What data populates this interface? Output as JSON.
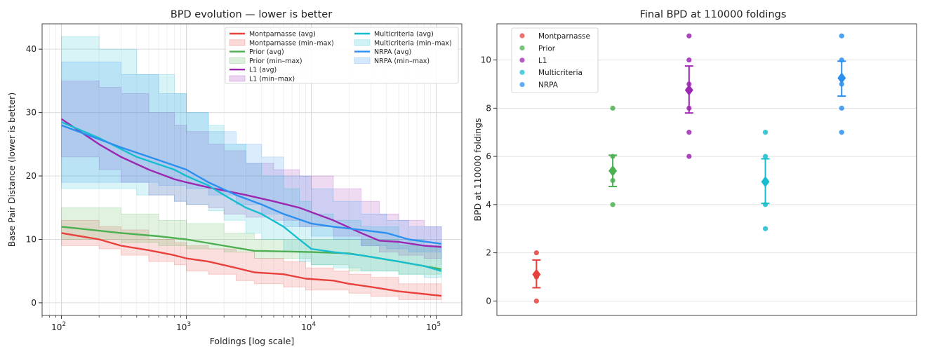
{
  "chart_data": [
    {
      "type": "line",
      "title": "BPD evolution — lower is better",
      "xlabel": "Foldings  [log scale]",
      "ylabel": "Base Pair Distance (lower is better)",
      "xscale": "log",
      "xlim": [
        70,
        160000
      ],
      "ylim": [
        -2,
        44
      ],
      "xticks": [
        {
          "value": 100,
          "base": "10",
          "exp": "2"
        },
        {
          "value": 1000,
          "base": "10",
          "exp": "3"
        },
        {
          "value": 10000,
          "base": "10",
          "exp": "4"
        },
        {
          "value": 100000,
          "base": "10",
          "exp": "5"
        }
      ],
      "yticks": [
        0,
        10,
        20,
        30,
        40
      ],
      "grid": true,
      "legend_position": "top-right",
      "series": [
        {
          "name": "Montparnasse",
          "avg_label": "Montparnasse (avg)",
          "band_label": "Montparnasse (min–max)",
          "color": "#e8413c",
          "x": [
            100,
            200,
            300,
            500,
            800,
            1000,
            1500,
            2500,
            3500,
            6000,
            9000,
            15000,
            20000,
            30000,
            50000,
            110000
          ],
          "avg": [
            11,
            10,
            9,
            8.3,
            7.5,
            7,
            6.5,
            5.5,
            4.8,
            4.5,
            3.8,
            3.5,
            3,
            2.5,
            1.8,
            1.1
          ],
          "min": [
            9,
            8.5,
            7.5,
            6.5,
            6,
            5,
            4.5,
            3.5,
            3,
            2.5,
            2,
            2,
            1.5,
            1,
            0.5,
            0
          ],
          "max": [
            13,
            12,
            11.5,
            10,
            9.5,
            9,
            8.5,
            8,
            7,
            6.5,
            5.5,
            5,
            4.5,
            4,
            3,
            2
          ]
        },
        {
          "name": "Prior",
          "avg_label": "Prior (avg)",
          "band_label": "Prior (min–max)",
          "color": "#4caf50",
          "x": [
            100,
            300,
            600,
            1000,
            2000,
            3500,
            10000,
            20000,
            50000,
            110000
          ],
          "avg": [
            12,
            11,
            10.5,
            10,
            9,
            8.2,
            8,
            7.8,
            6.5,
            5.3
          ],
          "min": [
            10,
            9.5,
            9,
            8.5,
            8,
            7,
            6,
            5,
            4.5,
            4
          ],
          "max": [
            15,
            14,
            13,
            12.5,
            11,
            10,
            10,
            10,
            9,
            8
          ]
        },
        {
          "name": "L1",
          "avg_label": "L1 (avg)",
          "band_label": "L1 (min–max)",
          "color": "#9c27b0",
          "x": [
            100,
            200,
            300,
            500,
            800,
            1000,
            1500,
            2000,
            3000,
            5000,
            8000,
            15000,
            25000,
            35000,
            50000,
            80000,
            110000
          ],
          "avg": [
            29,
            25,
            23,
            21,
            19.5,
            19,
            18.2,
            17.7,
            17,
            16,
            15,
            13,
            11,
            9.8,
            9.6,
            9,
            8.8
          ],
          "min": [
            23,
            21,
            19,
            17,
            16,
            15.5,
            15,
            14,
            13.5,
            13,
            12,
            10.5,
            9,
            8,
            7.5,
            7,
            6
          ],
          "max": [
            35,
            34,
            33,
            30,
            28,
            27,
            25,
            24,
            22,
            21,
            20,
            18,
            16,
            14,
            13,
            12,
            11
          ]
        },
        {
          "name": "Multicriteria",
          "avg_label": "Multicriteria (avg)",
          "band_label": "Multicriteria (min–max)",
          "color": "#17becf",
          "x": [
            100,
            200,
            400,
            800,
            1000,
            1500,
            2000,
            3000,
            4000,
            6000,
            8000,
            10000,
            15000,
            25000,
            50000,
            80000,
            110000
          ],
          "avg": [
            28.5,
            26,
            23,
            21,
            20,
            18.5,
            17,
            15,
            14,
            12,
            10,
            8.5,
            8,
            7.5,
            6.5,
            5.8,
            5
          ],
          "min": [
            18,
            18,
            17,
            16,
            15.5,
            14.5,
            13,
            11,
            10,
            8,
            6.5,
            6,
            5.5,
            5,
            4.5,
            4,
            3
          ],
          "max": [
            42,
            40,
            36,
            33,
            30,
            28,
            25,
            22,
            20,
            18,
            16,
            14,
            13,
            12,
            10,
            9,
            7
          ]
        },
        {
          "name": "NRPA",
          "avg_label": "NRPA (avg)",
          "band_label": "NRPA (min–max)",
          "color": "#2b8ff0",
          "x": [
            100,
            300,
            600,
            1000,
            1500,
            2500,
            4000,
            6000,
            10000,
            15000,
            25000,
            40000,
            60000,
            110000
          ],
          "avg": [
            28,
            24.5,
            22.5,
            21,
            19,
            17,
            15.5,
            14,
            12.5,
            12,
            11.5,
            11,
            10,
            9.3
          ],
          "min": [
            19,
            19,
            18.5,
            18,
            17,
            15.5,
            14,
            12,
            10.5,
            10,
            9,
            8.5,
            8,
            7
          ],
          "max": [
            38,
            36,
            33,
            30,
            27,
            25,
            23,
            20,
            18,
            16,
            14,
            13,
            12,
            11
          ]
        }
      ]
    },
    {
      "type": "scatter",
      "title": "Final BPD at 110000 foldings",
      "ylabel": "BPD at 110000 foldings",
      "ylim": [
        -0.6,
        11.5
      ],
      "yticks": [
        0,
        2,
        4,
        6,
        8,
        10
      ],
      "grid": true,
      "legend_position": "top-left",
      "series": [
        {
          "name": "Montparnasse",
          "color": "#e8413c",
          "points": [
            0,
            1,
            2
          ],
          "mean": 1.1,
          "err_low": 0.55,
          "err_high": 1.7
        },
        {
          "name": "Prior",
          "color": "#4caf50",
          "points": [
            4,
            5,
            6,
            8
          ],
          "mean": 5.4,
          "err_low": 4.75,
          "err_high": 6.05
        },
        {
          "name": "L1",
          "color": "#9c27b0",
          "points": [
            6,
            7,
            8,
            9,
            10,
            11
          ],
          "mean": 8.75,
          "err_low": 7.8,
          "err_high": 9.75
        },
        {
          "name": "Multicriteria",
          "color": "#17becf",
          "points": [
            3,
            4,
            5,
            6,
            7
          ],
          "mean": 4.95,
          "err_low": 4.05,
          "err_high": 5.9
        },
        {
          "name": "NRPA",
          "color": "#2b8ff0",
          "points": [
            7,
            8,
            9,
            10,
            11
          ],
          "mean": 9.25,
          "err_low": 8.5,
          "err_high": 9.95
        }
      ]
    }
  ]
}
